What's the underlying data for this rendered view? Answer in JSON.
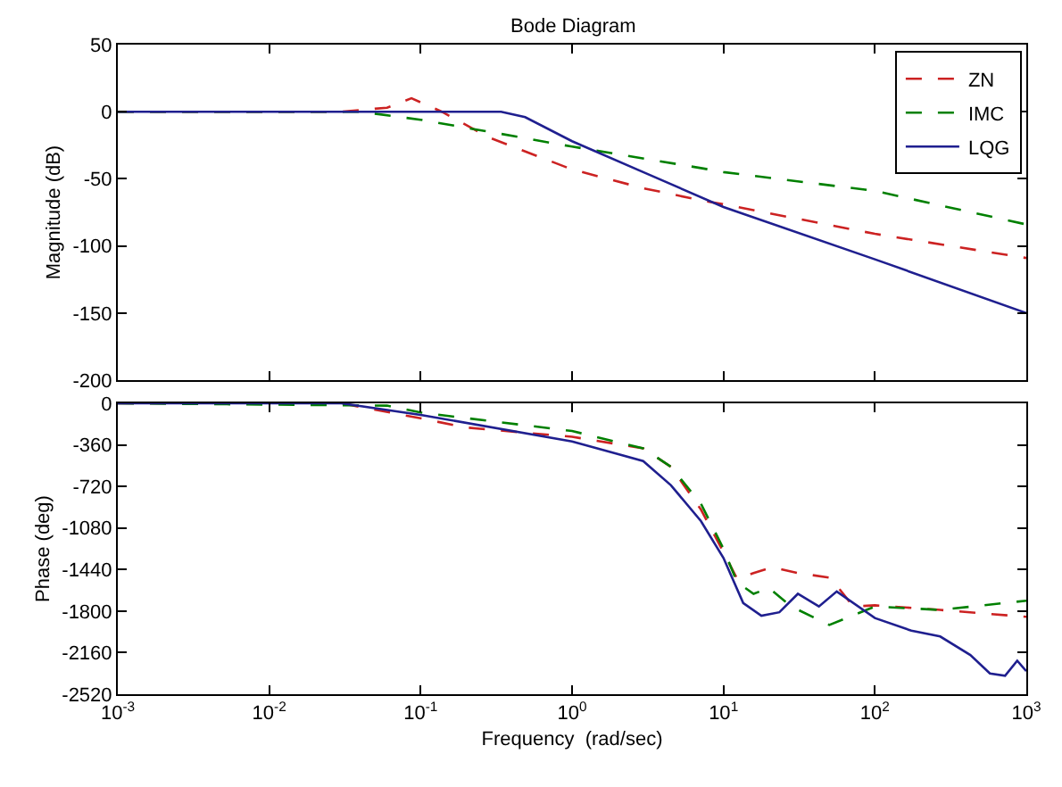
{
  "chart_data": [
    {
      "type": "line",
      "title": "Bode Diagram",
      "ylabel": "Magnitude (dB)",
      "log": "x",
      "grid": false,
      "legend": "top right",
      "tick_labels": "y",
      "xlim": [
        0.001,
        1000
      ],
      "xticks": [
        {
          "value": 0.001,
          "label": null
        },
        {
          "value": 0.01,
          "label": null
        },
        {
          "value": 0.1,
          "label": null
        },
        {
          "value": 1,
          "label": null
        },
        {
          "value": 10,
          "label": null
        },
        {
          "value": 100,
          "label": null
        },
        {
          "value": 1000,
          "label": null
        }
      ],
      "ylim": [
        -200,
        50
      ],
      "yticks": [
        -200,
        -150,
        -100,
        -50,
        0,
        50
      ],
      "series": [
        {
          "name": "ZN",
          "color": "#cc2222",
          "line_style": "dashed",
          "x": [
            0.001,
            0.03,
            0.06,
            0.087,
            0.138,
            0.28,
            1,
            2.95,
            7.1,
            10,
            100,
            1000
          ],
          "values": [
            0,
            0,
            3,
            10,
            0,
            -19,
            -43,
            -57,
            -66,
            -69,
            -91,
            -109
          ]
        },
        {
          "name": "IMC",
          "color": "#008000",
          "line_style": "dashed",
          "x": [
            0.001,
            0.04,
            0.1,
            0.32,
            1,
            7.1,
            10,
            100,
            1000
          ],
          "values": [
            0,
            0,
            -6,
            -16,
            -26,
            -42,
            -45,
            -59,
            -84
          ]
        },
        {
          "name": "LQG",
          "color": "#1f1f8f",
          "line_style": "solid",
          "x": [
            0.001,
            0.34,
            0.49,
            1,
            2.95,
            10,
            100,
            1000
          ],
          "values": [
            0,
            0,
            -4,
            -22,
            -45,
            -71,
            -110,
            -150
          ]
        }
      ]
    },
    {
      "type": "line",
      "xlabel": "Frequency  (rad/sec)",
      "ylabel": "Phase (deg)",
      "log": "x",
      "grid": false,
      "legend": false,
      "xlim": [
        0.001,
        1000
      ],
      "xticks": [
        {
          "value": 0.001,
          "label": "10$^{-3}$"
        },
        {
          "value": 0.01,
          "label": "10$^{-2}$"
        },
        {
          "value": 0.1,
          "label": "10$^{-1}$"
        },
        {
          "value": 1,
          "label": "10$^{0}$"
        },
        {
          "value": 10,
          "label": "10$^{1}$"
        },
        {
          "value": 100,
          "label": "10$^{2}$"
        },
        {
          "value": 1000,
          "label": "10$^{3}$"
        }
      ],
      "ylim": [
        -2520,
        0
      ],
      "yticks": [
        -2520,
        -2160,
        -1800,
        -1440,
        -1080,
        -720,
        -360,
        0
      ],
      "series": [
        {
          "color": "#cc2222",
          "line_style": "dashed",
          "x": [
            0.001,
            0.03,
            0.1,
            0.2,
            1,
            2.95,
            4.5,
            7.1,
            10,
            12.3,
            15.8,
            21,
            31,
            50,
            56,
            72,
            100,
            270,
            1000
          ],
          "values": [
            0,
            0,
            -130,
            -210,
            -290,
            -390,
            -550,
            -920,
            -1290,
            -1520,
            -1470,
            -1420,
            -1470,
            -1510,
            -1580,
            -1760,
            -1750,
            -1790,
            -1850
          ]
        },
        {
          "color": "#008000",
          "line_style": "dashed",
          "x": [
            0.001,
            0.06,
            0.1,
            1,
            2.95,
            4.5,
            7.1,
            10,
            12.3,
            15.8,
            20,
            28,
            50,
            100,
            270,
            1000
          ],
          "values": [
            0,
            -20,
            -80,
            -240,
            -390,
            -550,
            -870,
            -1260,
            -1550,
            -1650,
            -1600,
            -1760,
            -1920,
            -1760,
            -1790,
            -1710
          ]
        },
        {
          "color": "#1f1f8f",
          "line_style": "solid",
          "x": [
            0.001,
            0.03,
            0.1,
            1,
            2.95,
            4.5,
            7.1,
            10,
            13.5,
            17.8,
            23.4,
            31,
            42.7,
            56,
            100,
            174,
            270,
            427,
            575,
            724,
            871,
            1000
          ],
          "values": [
            0,
            0,
            -100,
            -330,
            -500,
            -710,
            -1020,
            -1340,
            -1730,
            -1840,
            -1810,
            -1650,
            -1760,
            -1630,
            -1860,
            -1970,
            -2020,
            -2180,
            -2340,
            -2360,
            -2230,
            -2320
          ]
        }
      ]
    }
  ]
}
